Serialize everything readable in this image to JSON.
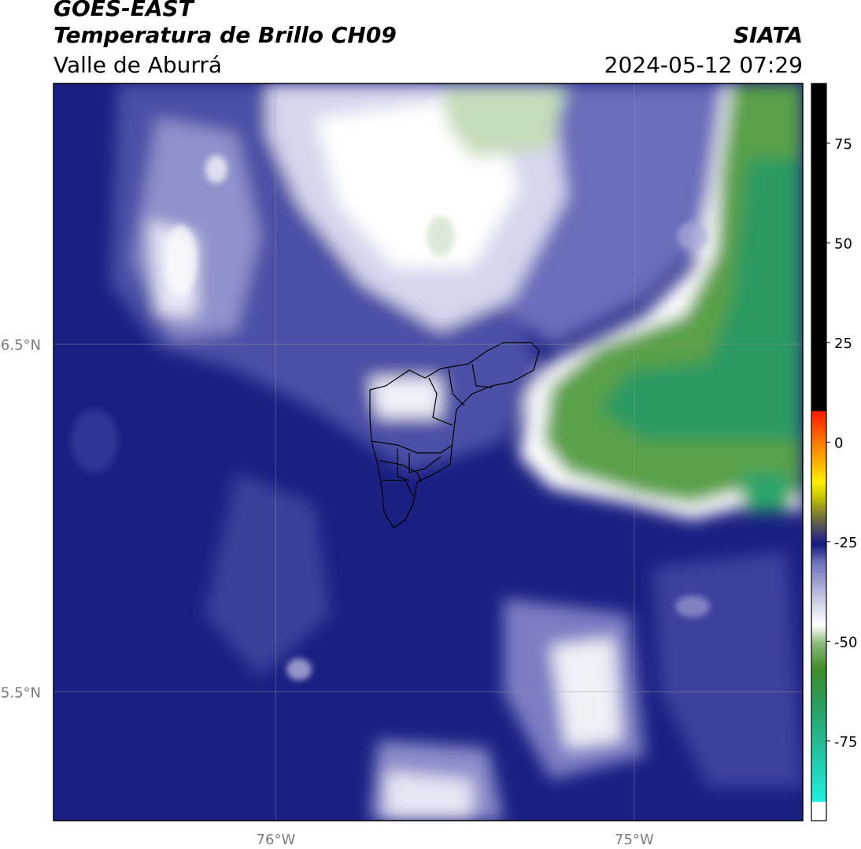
{
  "header": {
    "satellite": "GOES-EAST",
    "product": "Temperatura de Brillo CH09",
    "region": "Valle de Aburrá",
    "organization": "SIATA",
    "timestamp": "2024-05-12 07:29"
  },
  "map": {
    "lon_range": [
      -76.62,
      -74.53
    ],
    "lat_range": [
      5.13,
      7.25
    ],
    "lon_ticks": [
      {
        "value": -76.0,
        "label": "76°W"
      },
      {
        "value": -75.0,
        "label": "75°W"
      }
    ],
    "lat_ticks": [
      {
        "value": 6.5,
        "label": "6.5°N"
      },
      {
        "value": 5.5,
        "label": "5.5°N"
      }
    ],
    "grid": true
  },
  "colorbar": {
    "range": [
      -95,
      90
    ],
    "ticks": [
      {
        "value": 75,
        "label": "75"
      },
      {
        "value": 50,
        "label": "50"
      },
      {
        "value": 25,
        "label": "25"
      },
      {
        "value": 0,
        "label": "0"
      },
      {
        "value": -25,
        "label": "-25"
      },
      {
        "value": -50,
        "label": "-50"
      },
      {
        "value": -75,
        "label": "-75"
      }
    ],
    "colors": {
      "deep": "#141a7e",
      "mid": "#4a4fa8",
      "light": "#b3b5da",
      "white": "#ffffff",
      "green_light": "#c4dcb9",
      "green": "#3d8f2c",
      "teal": "#22a877",
      "cyan": "#20e6d0",
      "red": "#ff2a00",
      "orange": "#ff9a00",
      "yellow": "#ffee00",
      "black": "#000000"
    }
  }
}
